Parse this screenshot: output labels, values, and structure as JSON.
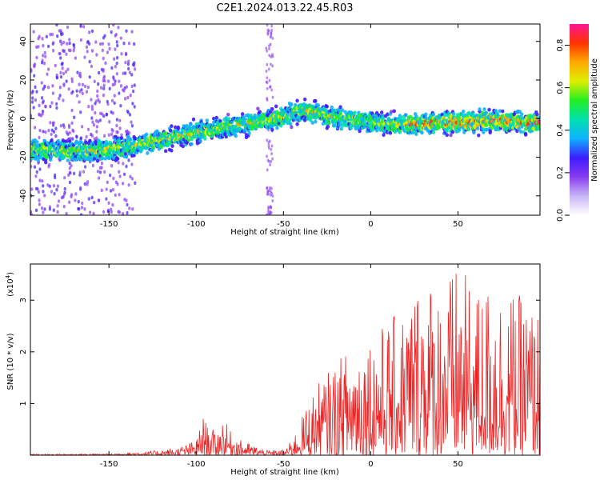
{
  "title": "C2E1.2024.013.22.45.R03",
  "colors": {
    "snr_line": "#ee2222",
    "axis": "#000000",
    "colorbar_stops": [
      "#ffffff",
      "#c9b6f6",
      "#8a3cf0",
      "#3c1cff",
      "#0fb0ff",
      "#00e0b0",
      "#22ee22",
      "#ddee00",
      "#ffaa00",
      "#ff3300",
      "#ff1493"
    ]
  },
  "chart_data": [
    {
      "type": "heatmap",
      "title": "C2E1.2024.013.22.45.R03",
      "xlabel": "Height of straight line (km)",
      "ylabel": "Frequency (Hz)",
      "xlim": [
        -195,
        97
      ],
      "ylim": [
        -50,
        49
      ],
      "x_ticks": [
        -150,
        -100,
        -50,
        0,
        50
      ],
      "y_ticks": [
        -40,
        -20,
        0,
        20,
        40
      ],
      "ridge": {
        "x": [
          -195,
          -180,
          -165,
          -150,
          -135,
          -120,
          -100,
          -80,
          -65,
          -50,
          -40,
          -30,
          -20,
          -5,
          10,
          25,
          40,
          55,
          70,
          85,
          97
        ],
        "frequency": [
          -16,
          -17,
          -17,
          -16,
          -14,
          -11,
          -7,
          -4,
          -2,
          1,
          4,
          3,
          0,
          -1,
          -3,
          -3,
          -2,
          -2,
          -1,
          -2,
          -2
        ]
      },
      "colorbar": {
        "label": "Normalized spectral amplitude",
        "range": [
          0,
          0.9
        ],
        "ticks": [
          0.0,
          0.2,
          0.4,
          0.6,
          0.8
        ]
      }
    },
    {
      "type": "line",
      "xlabel": "Height of straight line (km)",
      "ylabel": "SNR (10 * v/v)",
      "scale_label": "(x10",
      "scale_exp": "4",
      "xlim": [
        -195,
        97
      ],
      "ylim": [
        0,
        3.7
      ],
      "x_ticks": [
        -150,
        -100,
        -50,
        0,
        50
      ],
      "y_ticks": [
        1,
        2,
        3
      ],
      "envelope": {
        "x": [
          -195,
          -150,
          -125,
          -110,
          -100,
          -96,
          -93,
          -88,
          -85,
          -80,
          -75,
          -60,
          -50,
          -45,
          -40,
          -35,
          -30,
          -20,
          -10,
          0,
          10,
          20,
          25,
          30,
          40,
          50,
          60,
          70,
          80,
          90,
          97
        ],
        "max_snr": [
          0.02,
          0.03,
          0.08,
          0.15,
          0.3,
          0.75,
          0.55,
          0.45,
          0.75,
          0.45,
          0.3,
          0.1,
          0.1,
          0.3,
          0.7,
          1.1,
          1.4,
          1.8,
          2.2,
          2.4,
          2.6,
          2.9,
          3.3,
          3.6,
          3.3,
          3.7,
          3.2,
          3.4,
          3.2,
          3.0,
          2.8
        ]
      }
    }
  ]
}
